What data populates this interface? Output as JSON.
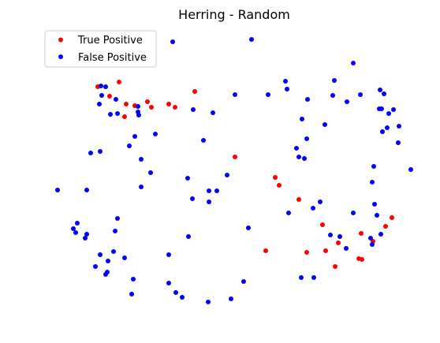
{
  "chart_data": {
    "type": "scatter",
    "title": "Herring - Random",
    "xlabel": "",
    "ylabel": "",
    "axes_visible": false,
    "grid": false,
    "legend_position": "top-left",
    "xlim": [
      70,
      525
    ],
    "ylim": [
      388,
      45
    ],
    "series": [
      {
        "name": "True Positive",
        "color": "#ff0000",
        "points": [
          [
            124,
            110
          ],
          [
            151,
            104
          ],
          [
            139,
            122
          ],
          [
            160,
            132
          ],
          [
            158,
            148
          ],
          [
            171,
            134
          ],
          [
            187,
            129
          ],
          [
            192,
            136
          ],
          [
            214,
            132
          ],
          [
            222,
            136
          ],
          [
            247,
            116
          ],
          [
            298,
            199
          ],
          [
            349,
            225
          ],
          [
            354,
            235
          ],
          [
            379,
            253
          ],
          [
            409,
            285
          ],
          [
            429,
            308
          ],
          [
            413,
            318
          ],
          [
            389,
            320
          ],
          [
            337,
            318
          ],
          [
            425,
            338
          ],
          [
            455,
            328
          ],
          [
            459,
            329
          ],
          [
            458,
            296
          ],
          [
            473,
            306
          ],
          [
            489,
            287
          ],
          [
            497,
            276
          ]
        ]
      },
      {
        "name": "False Positive",
        "color": "#0000ff",
        "points": [
          [
            219,
            53
          ],
          [
            319,
            50
          ],
          [
            448,
            80
          ],
          [
            128,
            109
          ],
          [
            134,
            110
          ],
          [
            129,
            121
          ],
          [
            147,
            126
          ],
          [
            126,
            132
          ],
          [
            140,
            145
          ],
          [
            149,
            144
          ],
          [
            175,
            135
          ],
          [
            175,
            142
          ],
          [
            176,
            146
          ],
          [
            245,
            139
          ],
          [
            270,
            143
          ],
          [
            298,
            120
          ],
          [
            340,
            120
          ],
          [
            362,
            103
          ],
          [
            364,
            113
          ],
          [
            390,
            126
          ],
          [
            424,
            102
          ],
          [
            422,
            121
          ],
          [
            440,
            129
          ],
          [
            457,
            120
          ],
          [
            482,
            114
          ],
          [
            487,
            119
          ],
          [
            481,
            138
          ],
          [
            484,
            138
          ],
          [
            499,
            139
          ],
          [
            493,
            144
          ],
          [
            491,
            162
          ],
          [
            485,
            167
          ],
          [
            506,
            160
          ],
          [
            505,
            181
          ],
          [
            383,
            151
          ],
          [
            412,
            158
          ],
          [
            389,
            176
          ],
          [
            376,
            188
          ],
          [
            379,
            199
          ],
          [
            386,
            201
          ],
          [
            171,
            173
          ],
          [
            197,
            170
          ],
          [
            164,
            185
          ],
          [
            127,
            192
          ],
          [
            115,
            194
          ],
          [
            179,
            202
          ],
          [
            258,
            178
          ],
          [
            191,
            219
          ],
          [
            238,
            226
          ],
          [
            288,
            222
          ],
          [
            179,
            237
          ],
          [
            265,
            242
          ],
          [
            275,
            242
          ],
          [
            244,
            252
          ],
          [
            265,
            256
          ],
          [
            474,
            211
          ],
          [
            472,
            231
          ],
          [
            521,
            215
          ],
          [
            73,
            241
          ],
          [
            110,
            241
          ],
          [
            406,
            256
          ],
          [
            397,
            264
          ],
          [
            366,
            270
          ],
          [
            448,
            270
          ],
          [
            475,
            259
          ],
          [
            478,
            273
          ],
          [
            149,
            277
          ],
          [
            98,
            283
          ],
          [
            93,
            290
          ],
          [
            96,
            295
          ],
          [
            110,
            297
          ],
          [
            108,
            302
          ],
          [
            146,
            293
          ],
          [
            315,
            289
          ],
          [
            239,
            300
          ],
          [
            419,
            298
          ],
          [
            431,
            300
          ],
          [
            470,
            302
          ],
          [
            483,
            297
          ],
          [
            472,
            310
          ],
          [
            439,
            315
          ],
          [
            127,
            323
          ],
          [
            144,
            319
          ],
          [
            158,
            327
          ],
          [
            214,
            323
          ],
          [
            137,
            331
          ],
          [
            121,
            338
          ],
          [
            136,
            345
          ],
          [
            134,
            348
          ],
          [
            169,
            354
          ],
          [
            214,
            359
          ],
          [
            223,
            371
          ],
          [
            231,
            377
          ],
          [
            264,
            383
          ],
          [
            293,
            379
          ],
          [
            309,
            357
          ],
          [
            382,
            352
          ],
          [
            398,
            352
          ],
          [
            167,
            373
          ]
        ]
      }
    ]
  }
}
